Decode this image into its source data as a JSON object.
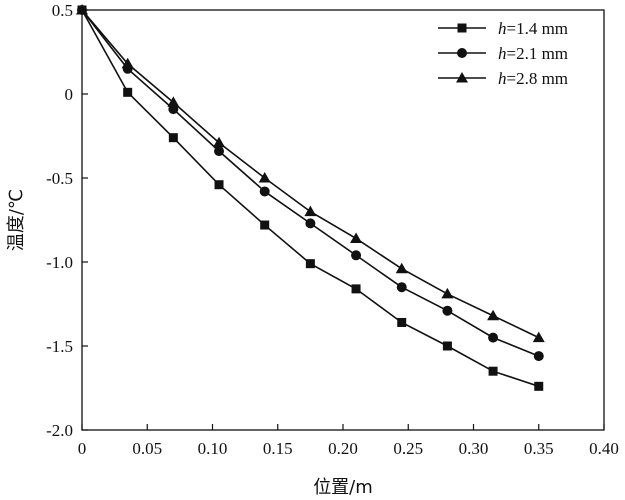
{
  "chart_data": {
    "type": "line",
    "title": "",
    "xlabel": "位置/m",
    "ylabel": "温度/℃",
    "xlim": [
      0,
      0.4
    ],
    "ylim": [
      -2.0,
      0.5
    ],
    "xticks": [
      0,
      0.05,
      0.1,
      0.15,
      0.2,
      0.25,
      0.3,
      0.35,
      0.4
    ],
    "xtick_labels": [
      "0",
      "0.05",
      "0.10",
      "0.15",
      "0.20",
      "0.25",
      "0.30",
      "0.35",
      "0.40"
    ],
    "yticks": [
      0.5,
      0,
      -0.5,
      -1.0,
      -1.5,
      -2.0
    ],
    "ytick_labels": [
      "0.5",
      "0",
      "-0.5",
      "-1.0",
      "-1.5",
      "-2.0"
    ],
    "grid": false,
    "legend_position": "top-right",
    "x": [
      0,
      0.035,
      0.07,
      0.105,
      0.14,
      0.175,
      0.21,
      0.245,
      0.28,
      0.315,
      0.35
    ],
    "series": [
      {
        "name": "h=1.4 mm",
        "name_italic": "h",
        "name_rest": "=1.4 mm",
        "marker": "square",
        "values": [
          0.5,
          0.01,
          -0.26,
          -0.54,
          -0.78,
          -1.01,
          -1.16,
          -1.36,
          -1.5,
          -1.65,
          -1.74
        ]
      },
      {
        "name": "h=2.1 mm",
        "name_italic": "h",
        "name_rest": "=2.1 mm",
        "marker": "circle",
        "values": [
          0.5,
          0.15,
          -0.09,
          -0.34,
          -0.58,
          -0.77,
          -0.96,
          -1.15,
          -1.29,
          -1.45,
          -1.56
        ]
      },
      {
        "name": "h=2.8 mm",
        "name_italic": "h",
        "name_rest": "=2.8 mm",
        "marker": "triangle",
        "values": [
          0.5,
          0.18,
          -0.05,
          -0.29,
          -0.5,
          -0.7,
          -0.86,
          -1.04,
          -1.19,
          -1.32,
          -1.45
        ]
      }
    ]
  }
}
